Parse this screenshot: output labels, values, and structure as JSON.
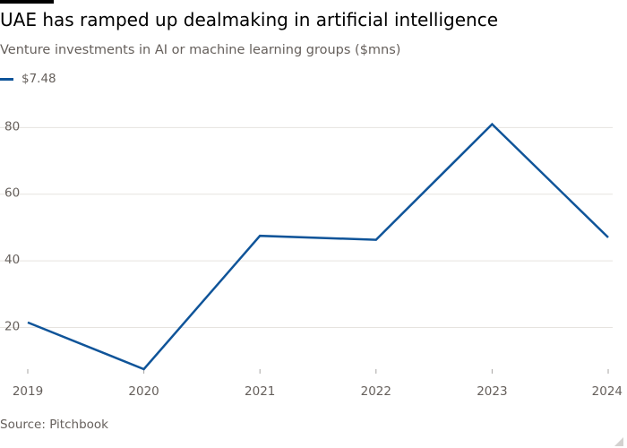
{
  "title": "UAE has ramped up dealmaking in artificial intelligence",
  "subtitle": "Venture investments in AI or machine learning groups ($mns)",
  "source": "Source: Pitchbook",
  "colors": {
    "series": "#0f5499",
    "grid": "#e6e3df",
    "text": "#66605c",
    "tick_axis": "#a7a5a3"
  },
  "chart_data": {
    "type": "line",
    "x": [
      "2019",
      "2020",
      "2021",
      "2022",
      "2023",
      "2024"
    ],
    "ylim": [
      7.48,
      86
    ],
    "yticks": [
      20,
      40,
      60,
      80
    ],
    "grid": true,
    "legend_position": "top-left",
    "series": [
      {
        "name": "$7.48",
        "values": [
          21.5,
          7.48,
          47.5,
          46.3,
          81,
          47
        ]
      }
    ]
  }
}
